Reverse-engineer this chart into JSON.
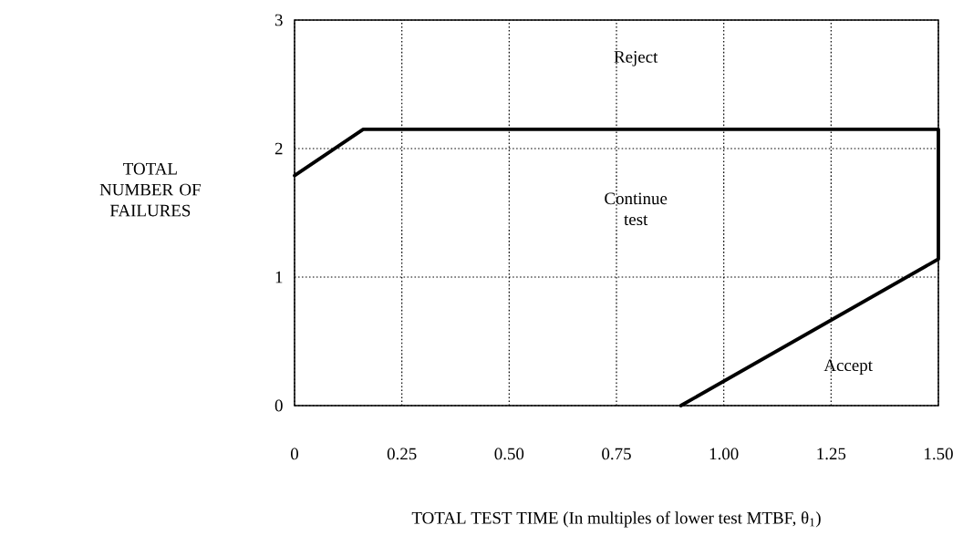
{
  "chart_data": {
    "type": "line",
    "xlabel": "TOTAL TEST TIME (In multiples of lower test MTBF, θ$_{1}$)",
    "ylabel": "TOTAL NUMBER OF FAILURES",
    "series": [
      {
        "color": "#000000",
        "x": [
          0,
          0.16,
          1.5,
          1.5,
          0.9
        ],
        "values": [
          1.79,
          2.15,
          2.15,
          1.14,
          0
        ]
      }
    ],
    "xlim": [
      0,
      1.5
    ],
    "ylim": [
      0,
      3
    ],
    "xticks": [
      0,
      0.25,
      {
        "value": 0.5,
        "label": "0.50"
      },
      0.75,
      {
        "value": 1.0,
        "label": "1.00"
      },
      1.25,
      {
        "value": 1.5,
        "label": "1.50"
      }
    ],
    "yticks": [
      0,
      1,
      2,
      3
    ],
    "grid": true,
    "marker": "none",
    "line_style": "solid",
    "annotations": [
      "Reject",
      "Continue test",
      "Accept"
    ]
  }
}
